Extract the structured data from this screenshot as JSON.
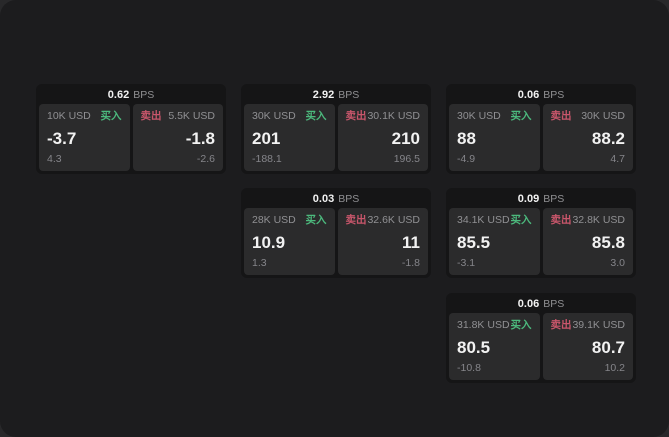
{
  "colors": {
    "page_bg": "#28282a",
    "window_bg": "#1c1c1e",
    "card_bg": "#151516",
    "panel_bg": "#2b2b2c",
    "text_primary": "#f2f2f2",
    "text_muted": "#909093",
    "buy_green": "#4cb97d",
    "sell_red": "#c9566b"
  },
  "labels": {
    "bps_unit": "BPS",
    "buy": "买入",
    "sell": "卖出"
  },
  "cards": [
    {
      "col": 1,
      "row": 1,
      "bps": "0.62",
      "buy": {
        "size": "10K USD",
        "price": "-3.7",
        "delta": "4.3"
      },
      "sell": {
        "size": "5.5K USD",
        "price": "-1.8",
        "delta": "-2.6"
      }
    },
    {
      "col": 2,
      "row": 1,
      "bps": "2.92",
      "buy": {
        "size": "30K USD",
        "price": "201",
        "delta": "-188.1"
      },
      "sell": {
        "size": "30.1K USD",
        "price": "210",
        "delta": "196.5"
      }
    },
    {
      "col": 3,
      "row": 1,
      "bps": "0.06",
      "buy": {
        "size": "30K USD",
        "price": "88",
        "delta": "-4.9"
      },
      "sell": {
        "size": "30K USD",
        "price": "88.2",
        "delta": "4.7"
      }
    },
    {
      "col": 2,
      "row": 2,
      "bps": "0.03",
      "buy": {
        "size": "28K USD",
        "price": "10.9",
        "delta": "1.3"
      },
      "sell": {
        "size": "32.6K USD",
        "price": "11",
        "delta": "-1.8"
      }
    },
    {
      "col": 3,
      "row": 2,
      "bps": "0.09",
      "buy": {
        "size": "34.1K USD",
        "price": "85.5",
        "delta": "-3.1"
      },
      "sell": {
        "size": "32.8K USD",
        "price": "85.8",
        "delta": "3.0"
      }
    },
    {
      "col": 3,
      "row": 3,
      "bps": "0.06",
      "buy": {
        "size": "31.8K USD",
        "price": "80.5",
        "delta": "-10.8"
      },
      "sell": {
        "size": "39.1K USD",
        "price": "80.7",
        "delta": "10.2"
      }
    }
  ]
}
